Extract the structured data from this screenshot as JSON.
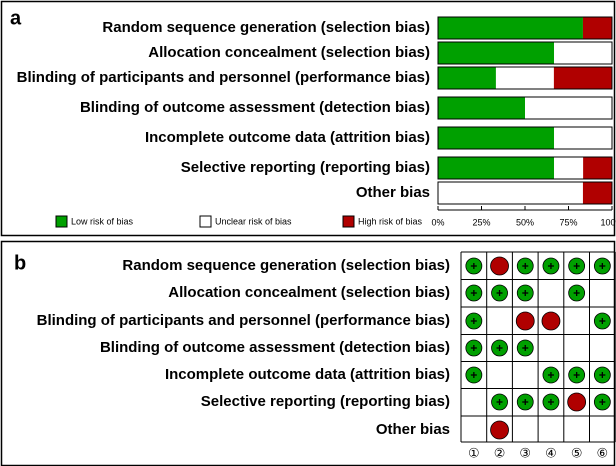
{
  "chart_data": {
    "type": "bar",
    "orientation": "horizontal",
    "stacked": true,
    "panel_label": "a",
    "categories": [
      "Random sequence generation (selection bias)",
      "Allocation concealment (selection bias)",
      "Blinding of participants and personnel (performance bias)",
      "Blinding of outcome assessment (detection bias)",
      "Incomplete outcome data (attrition bias)",
      "Selective reporting (reporting bias)",
      "Other bias"
    ],
    "series": [
      {
        "name": "Low risk of bias",
        "color": "#00a000",
        "values": [
          83.3,
          66.7,
          33.3,
          50,
          66.7,
          66.7,
          0
        ]
      },
      {
        "name": "Unclear risk of bias",
        "color": "#ffffff",
        "values": [
          0,
          33.3,
          33.3,
          50,
          33.3,
          16.7,
          83.3
        ]
      },
      {
        "name": "High risk of bias",
        "color": "#b00000",
        "values": [
          16.7,
          0,
          33.3,
          0,
          0,
          16.7,
          16.7
        ]
      }
    ],
    "xlim": [
      0,
      100
    ],
    "xticks": [
      {
        "value": 0,
        "label": "0%"
      },
      {
        "value": 25,
        "label": "25%"
      },
      {
        "value": 50,
        "label": "50%"
      },
      {
        "value": 75,
        "label": "75%"
      },
      {
        "value": 100,
        "label": "100%"
      }
    ],
    "legend": "bottom"
  },
  "panel_b": {
    "label": "b",
    "rows": [
      {
        "label": "Random sequence generation (selection bias)",
        "cells": [
          "low",
          "high",
          "low",
          "low",
          "low",
          "low"
        ]
      },
      {
        "label": "Allocation concealment (selection bias)",
        "cells": [
          "low",
          "low",
          "low",
          null,
          "low",
          null
        ]
      },
      {
        "label": "Blinding of participants and personnel (performance bias)",
        "cells": [
          "low",
          null,
          "high",
          "high",
          null,
          "low"
        ]
      },
      {
        "label": "Blinding of outcome assessment (detection bias)",
        "cells": [
          "low",
          "low",
          "low",
          null,
          null,
          null
        ]
      },
      {
        "label": "Incomplete outcome data (attrition bias)",
        "cells": [
          "low",
          null,
          null,
          "low",
          "low",
          "low"
        ]
      },
      {
        "label": "Selective reporting (reporting bias)",
        "cells": [
          null,
          "low",
          "low",
          "low",
          "high",
          "low"
        ]
      },
      {
        "label": "Other bias",
        "cells": [
          null,
          "high",
          null,
          null,
          null,
          null
        ]
      }
    ],
    "columns": [
      "①",
      "②",
      "③",
      "④",
      "⑤",
      "⑥"
    ],
    "colors": {
      "low": "#00a000",
      "high": "#b00000"
    }
  }
}
